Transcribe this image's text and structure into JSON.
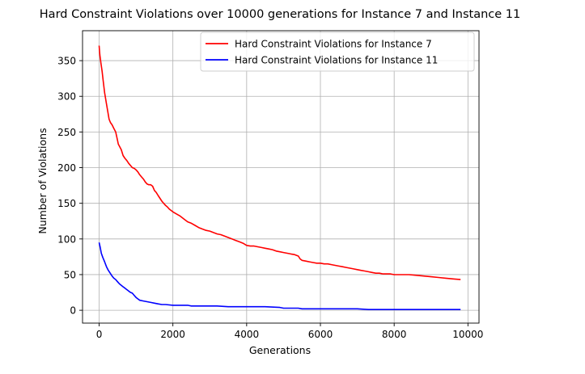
{
  "chart_data": {
    "type": "line",
    "title": "Hard Constraint Violations over 10000 generations for Instance 7 and Instance 11",
    "xlabel": "Generations",
    "ylabel": "Number of Violations",
    "xlim": [
      -450,
      10300
    ],
    "ylim": [
      -18,
      392
    ],
    "xticks": [
      0,
      2000,
      4000,
      6000,
      8000,
      10000
    ],
    "yticks": [
      0,
      50,
      100,
      150,
      200,
      250,
      300,
      350
    ],
    "grid": true,
    "legend_position": "upper right",
    "series": [
      {
        "name": "Hard Constraint Violations for Instance 7",
        "color": "#ff0000",
        "x": [
          0,
          20,
          50,
          80,
          110,
          150,
          190,
          230,
          270,
          310,
          350,
          400,
          450,
          500,
          520,
          550,
          600,
          650,
          700,
          750,
          800,
          850,
          900,
          950,
          1000,
          1050,
          1100,
          1150,
          1200,
          1250,
          1300,
          1350,
          1400,
          1450,
          1500,
          1550,
          1600,
          1650,
          1700,
          1750,
          1800,
          1850,
          1900,
          1950,
          2000,
          2100,
          2200,
          2300,
          2400,
          2500,
          2600,
          2700,
          2800,
          2900,
          3000,
          3100,
          3200,
          3300,
          3400,
          3500,
          3600,
          3700,
          3800,
          3900,
          4000,
          4100,
          4200,
          4300,
          4400,
          4500,
          4600,
          4700,
          4800,
          4900,
          5000,
          5100,
          5200,
          5300,
          5400,
          5450,
          5500,
          5600,
          5700,
          5800,
          5900,
          6000,
          6100,
          6200,
          6300,
          6400,
          6500,
          6600,
          6700,
          6800,
          6900,
          7000,
          7100,
          7200,
          7300,
          7400,
          7500,
          7600,
          7700,
          7800,
          7900,
          8000,
          8200,
          8400,
          8600,
          8800,
          9000,
          9200,
          9400,
          9600,
          9800
        ],
        "values": [
          371,
          358,
          346,
          335,
          322,
          305,
          292,
          280,
          268,
          263,
          260,
          255,
          250,
          238,
          233,
          230,
          225,
          217,
          213,
          210,
          206,
          203,
          200,
          199,
          197,
          194,
          190,
          187,
          184,
          180,
          177,
          176,
          176,
          174,
          168,
          165,
          161,
          157,
          153,
          150,
          147,
          145,
          142,
          140,
          138,
          135,
          132,
          128,
          124,
          122,
          119,
          116,
          114,
          112,
          111,
          109,
          107,
          106,
          104,
          102,
          100,
          98,
          96,
          94,
          91,
          90,
          90,
          89,
          88,
          87,
          86,
          85,
          83,
          82,
          81,
          80,
          79,
          78,
          76,
          72,
          70,
          69,
          68,
          67,
          66,
          66,
          65,
          65,
          64,
          63,
          62,
          61,
          60,
          59,
          58,
          57,
          56,
          55,
          54,
          53,
          52,
          52,
          51,
          51,
          51,
          50,
          50,
          50,
          49,
          48,
          47,
          46,
          45,
          44,
          43
        ]
      },
      {
        "name": "Hard Constraint Violations for Instance 11",
        "color": "#0000ff",
        "x": [
          0,
          30,
          60,
          100,
          150,
          200,
          250,
          300,
          350,
          400,
          450,
          500,
          550,
          600,
          650,
          700,
          750,
          800,
          850,
          900,
          950,
          1000,
          1050,
          1100,
          1200,
          1300,
          1400,
          1500,
          1600,
          1700,
          1800,
          2000,
          2200,
          2400,
          2500,
          2700,
          3000,
          3200,
          3500,
          3800,
          4000,
          4500,
          4900,
          5000,
          5400,
          5500,
          6000,
          6500,
          7000,
          7300,
          7500,
          8000,
          8500,
          9000,
          9500,
          9800
        ],
        "values": [
          95,
          88,
          80,
          74,
          68,
          61,
          56,
          52,
          48,
          45,
          43,
          40,
          37,
          35,
          33,
          31,
          29,
          27,
          25,
          24,
          21,
          18,
          16,
          14,
          13,
          12,
          11,
          10,
          9,
          8,
          8,
          7,
          7,
          7,
          6,
          6,
          6,
          6,
          5,
          5,
          5,
          5,
          4,
          3,
          3,
          2,
          2,
          2,
          2,
          1,
          1,
          1,
          1,
          1,
          1,
          1
        ]
      }
    ]
  }
}
